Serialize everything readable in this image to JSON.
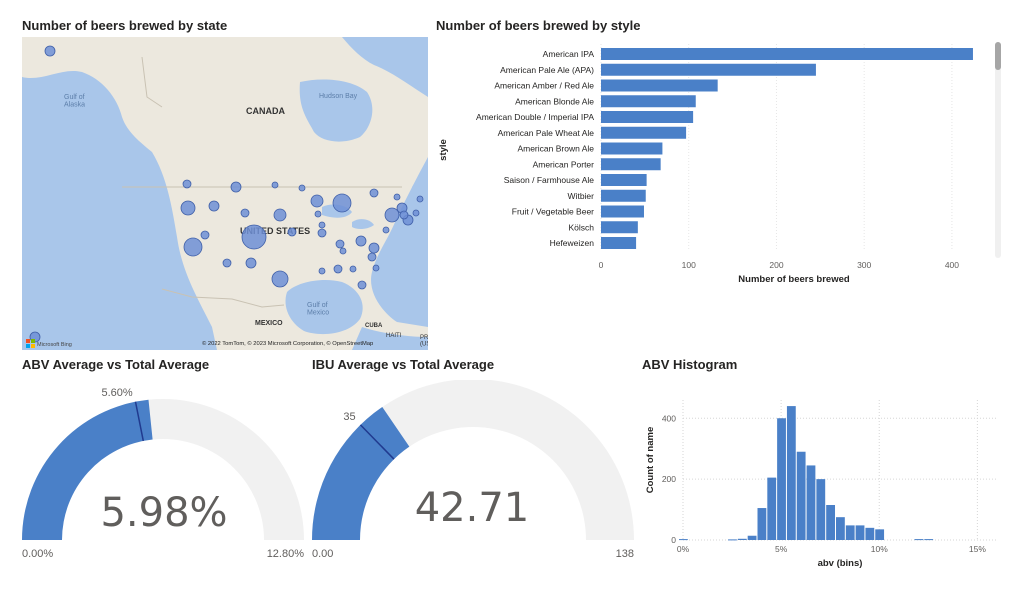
{
  "map": {
    "title": "Number of beers brewed by state",
    "labels": {
      "canada": "CANADA",
      "hudson": "Hudson Bay",
      "alaska": "Gulf of\nAlaska",
      "us": "UNITED STATES",
      "gulf": "Gulf of\nMexico",
      "mexico": "MEXICO",
      "cuba": "CUBA",
      "haiti": "HAITI",
      "pr": "PR\n(US)"
    },
    "logo": "Microsoft Bing",
    "attribution": "© 2022 TomTom, © 2023 Microsoft Corporation, © OpenStreetMap"
  },
  "style_chart": {
    "title": "Number of beers brewed by style"
  },
  "abv_gauge": {
    "title": "ABV Average vs Total Average",
    "value_label": "5.98%",
    "min_label": "0.00%",
    "max_label": "12.80%",
    "target_label": "5.60%"
  },
  "ibu_gauge": {
    "title": "IBU Average vs Total Average",
    "value_label": "42.71",
    "min_label": "0.00",
    "max_label": "138",
    "target_label": "35"
  },
  "histogram": {
    "title": "ABV Histogram"
  },
  "colors": {
    "accent": "#4a80c8",
    "track": "#f1f1f1",
    "target": "#203a8f",
    "land": "#ece8de",
    "water": "#a9c6ea"
  },
  "chart_data": [
    {
      "type": "bar",
      "orientation": "horizontal",
      "title": "Number of beers brewed by style",
      "xlabel": "Number of beers brewed",
      "ylabel": "style",
      "xlim": [
        0,
        440
      ],
      "xticks": [
        "0",
        "100",
        "200",
        "300",
        "400"
      ],
      "categories": [
        "American IPA",
        "American Pale Ale (APA)",
        "American Amber / Red Ale",
        "American Blonde Ale",
        "American Double / Imperial IPA",
        "American Pale Wheat Ale",
        "American Brown Ale",
        "American Porter",
        "Saison / Farmhouse Ale",
        "Witbier",
        "Fruit / Vegetable Beer",
        "Kölsch",
        "Hefeweizen"
      ],
      "values": [
        424,
        245,
        133,
        108,
        105,
        97,
        70,
        68,
        52,
        51,
        49,
        42,
        40
      ]
    },
    {
      "type": "gauge",
      "title": "ABV Average vs Total Average",
      "value": 5.98,
      "min": 0.0,
      "max": 12.8,
      "target": 5.6
    },
    {
      "type": "gauge",
      "title": "IBU Average vs Total Average",
      "value": 42.71,
      "min": 0,
      "max": 138,
      "target": 35
    },
    {
      "type": "bar",
      "title": "ABV Histogram",
      "xlabel": "abv (bins)",
      "ylabel": "Count of name",
      "xlim": [
        0,
        16
      ],
      "ylim": [
        0,
        460
      ],
      "yticks": [
        "0",
        "200",
        "400"
      ],
      "xticks": [
        "0%",
        "5%",
        "10%",
        "15%"
      ],
      "x": [
        0.0,
        2.5,
        3.0,
        3.5,
        4.0,
        4.5,
        5.0,
        5.5,
        6.0,
        6.5,
        7.0,
        7.5,
        8.0,
        8.5,
        9.0,
        9.5,
        10.0,
        12.0,
        12.5
      ],
      "values": [
        3,
        2,
        4,
        14,
        105,
        205,
        400,
        440,
        290,
        245,
        200,
        115,
        75,
        48,
        48,
        40,
        35,
        3,
        3
      ]
    },
    {
      "type": "scatter",
      "title": "Number of beers brewed by state",
      "subtype": "bubble-map",
      "bubble_count": 40
    }
  ]
}
